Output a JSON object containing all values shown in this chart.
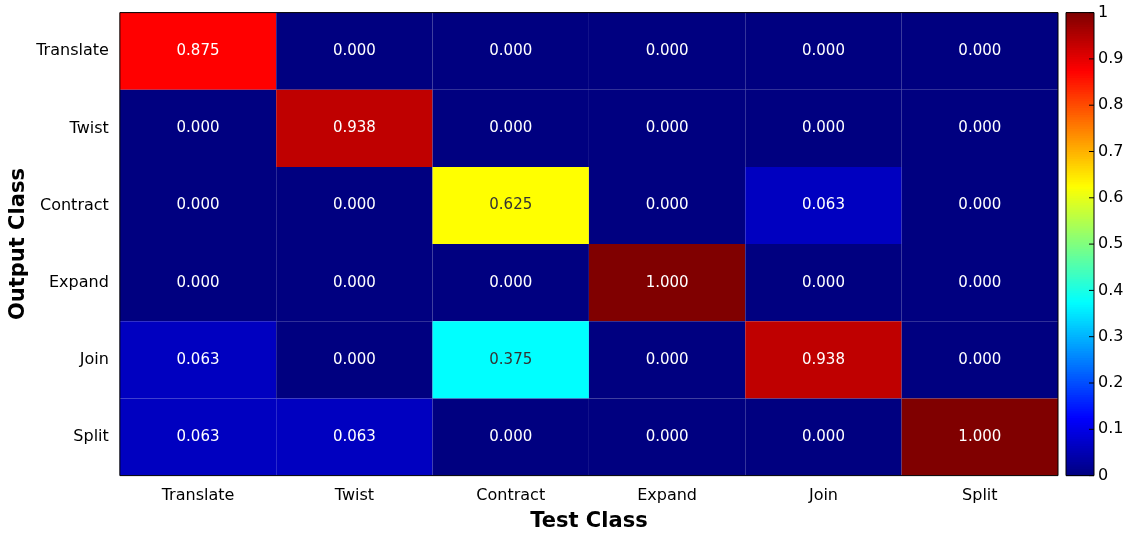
{
  "chart_data": {
    "type": "heatmap",
    "xlabel": "Test Class",
    "ylabel": "Output Class",
    "categories": [
      "Translate",
      "Twist",
      "Contract",
      "Expand",
      "Join",
      "Split"
    ],
    "y_categories": [
      "Translate",
      "Twist",
      "Contract",
      "Expand",
      "Join",
      "Split"
    ],
    "cells": [
      [
        0.875,
        0,
        0,
        0,
        0,
        0
      ],
      [
        0,
        0.938,
        0,
        0,
        0,
        0
      ],
      [
        0,
        0,
        0.625,
        0,
        0.063,
        0
      ],
      [
        0,
        0,
        0,
        1,
        0,
        0
      ],
      [
        0.063,
        0,
        0.375,
        0,
        0.938,
        0
      ],
      [
        0.063,
        0.063,
        0,
        0,
        0,
        1
      ]
    ],
    "cell_labels": [
      [
        "0.875",
        "0.000",
        "0.000",
        "0.000",
        "0.000",
        "0.000"
      ],
      [
        "0.000",
        "0.938",
        "0.000",
        "0.000",
        "0.000",
        "0.000"
      ],
      [
        "0.000",
        "0.000",
        "0.625",
        "0.000",
        "0.063",
        "0.000"
      ],
      [
        "0.000",
        "0.000",
        "0.000",
        "1.000",
        "0.000",
        "0.000"
      ],
      [
        "0.063",
        "0.000",
        "0.375",
        "0.000",
        "0.938",
        "0.000"
      ],
      [
        "0.063",
        "0.063",
        "0.000",
        "0.000",
        "0.000",
        "1.000"
      ]
    ],
    "clim": [
      0,
      1
    ],
    "cticks": [
      0,
      0.1,
      0.2,
      0.3,
      0.4,
      0.5,
      0.6,
      0.7,
      0.8,
      0.9,
      1
    ]
  }
}
